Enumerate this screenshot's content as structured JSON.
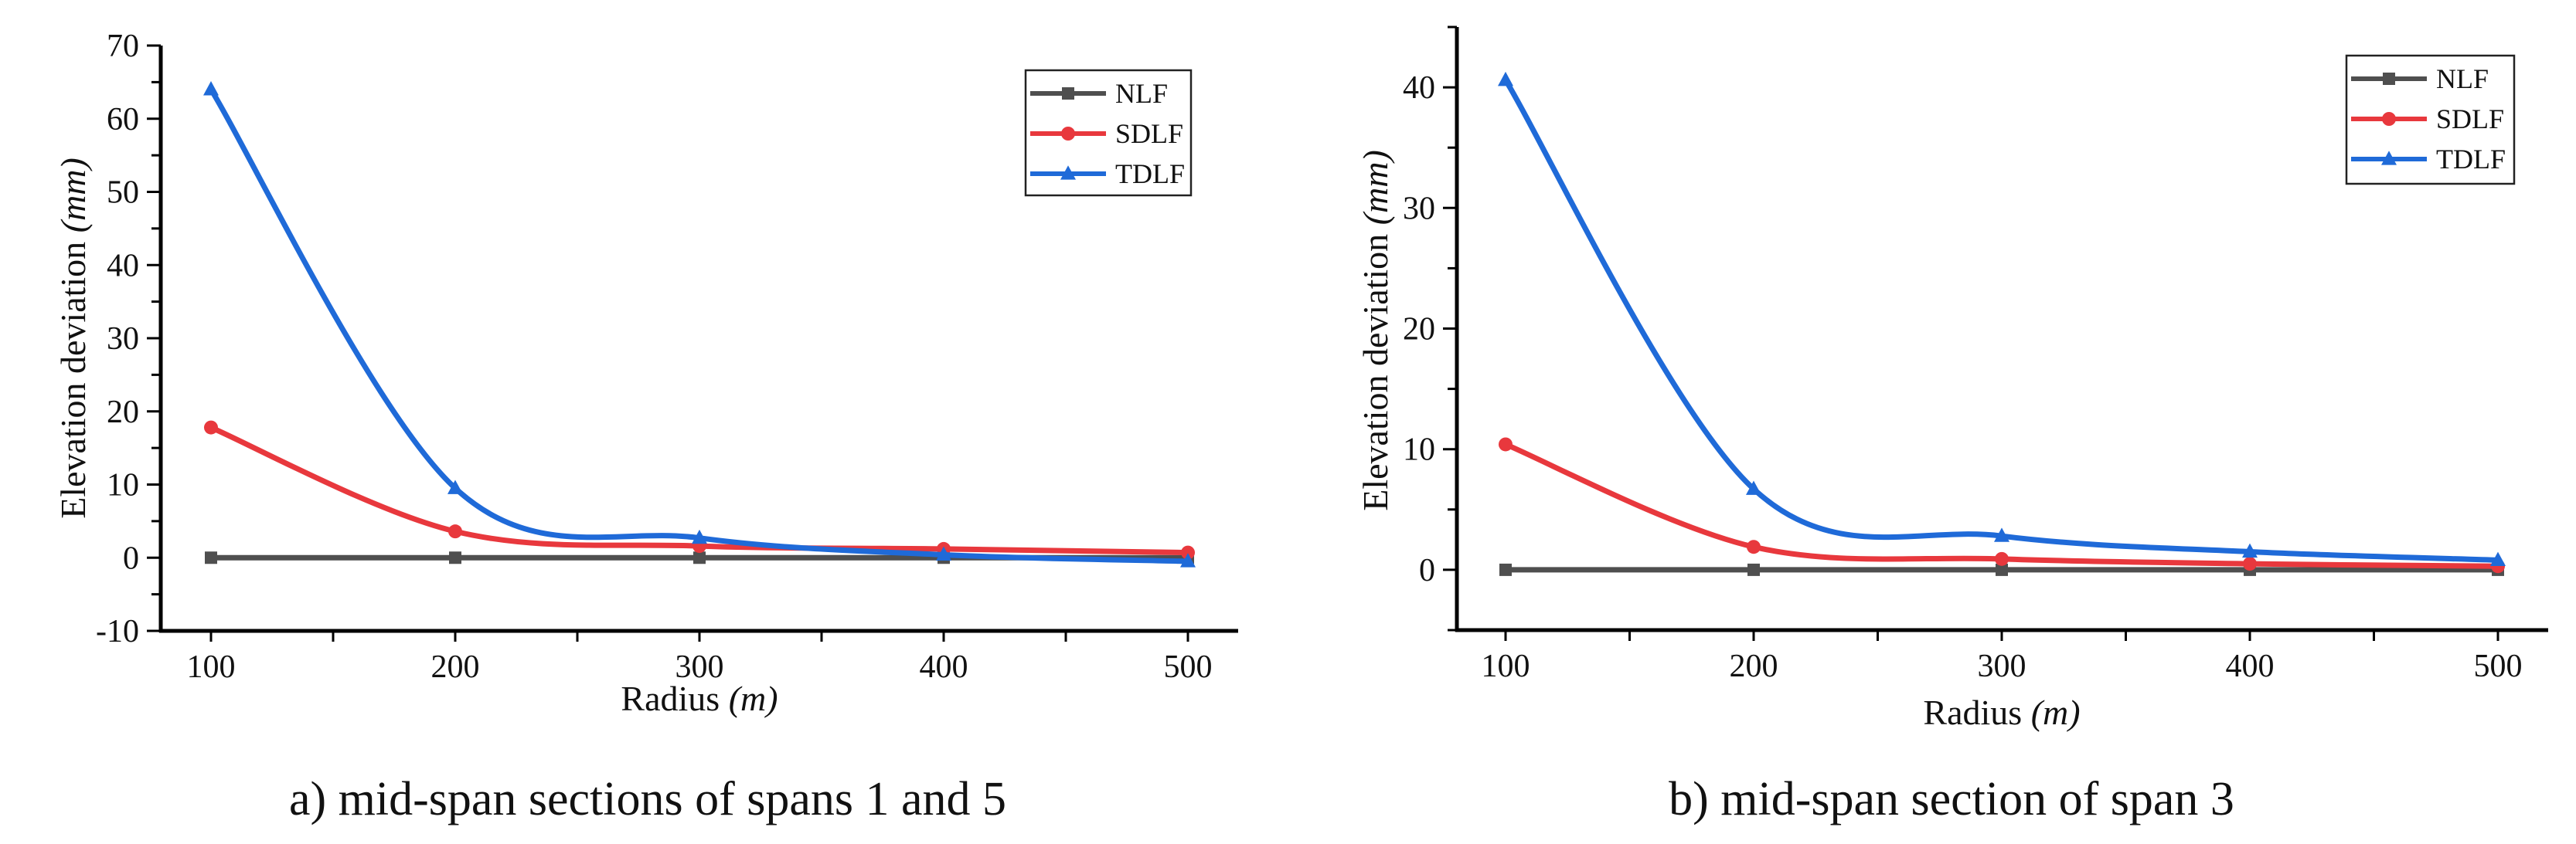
{
  "chart_data": [
    {
      "type": "line",
      "caption": "a) mid-span sections of spans 1 and 5",
      "xlabel": "Radius",
      "xlabel_unit": "(m)",
      "ylabel": "Elevation deviation",
      "ylabel_unit": "(mm)",
      "x": [
        100,
        200,
        300,
        400,
        500
      ],
      "xlim": [
        80,
        520
      ],
      "ylim": [
        -10,
        70
      ],
      "xticks": [
        100,
        200,
        300,
        400,
        500
      ],
      "xtick_labels": [
        "100",
        "200",
        "300",
        "400",
        "500"
      ],
      "yticks": [
        -10,
        0,
        10,
        20,
        30,
        40,
        50,
        60,
        70
      ],
      "ytick_labels": [
        "-10",
        "0",
        "10",
        "20",
        "30",
        "40",
        "50",
        "60",
        "70"
      ],
      "grid": false,
      "legend_position": "top-right",
      "series": [
        {
          "name": "NLF",
          "marker": "square",
          "color": "#4f4f4f",
          "values": [
            0,
            0,
            0,
            0,
            0
          ]
        },
        {
          "name": "SDLF",
          "marker": "circle",
          "color": "#e8383d",
          "values": [
            17.8,
            3.6,
            1.6,
            1.2,
            0.7
          ]
        },
        {
          "name": "TDLF",
          "marker": "triangle",
          "color": "#1f6ad8",
          "values": [
            64.0,
            9.5,
            2.7,
            0.4,
            -0.5
          ]
        }
      ]
    },
    {
      "type": "line",
      "caption": "b) mid-span section of span 3",
      "xlabel": "Radius",
      "xlabel_unit": "(m)",
      "ylabel": "Elevation deviation",
      "ylabel_unit": "(mm)",
      "x": [
        100,
        200,
        300,
        400,
        500
      ],
      "xlim": [
        80,
        520
      ],
      "ylim": [
        -5,
        45
      ],
      "xticks": [
        100,
        200,
        300,
        400,
        500
      ],
      "xtick_labels": [
        "100",
        "200",
        "300",
        "400",
        "500"
      ],
      "yticks": [
        0,
        10,
        20,
        30,
        40
      ],
      "ytick_labels": [
        "0",
        "10",
        "20",
        "30",
        "40"
      ],
      "grid": false,
      "legend_position": "top-right",
      "series": [
        {
          "name": "NLF",
          "marker": "square",
          "color": "#4f4f4f",
          "values": [
            0,
            0,
            0,
            0,
            0
          ]
        },
        {
          "name": "SDLF",
          "marker": "circle",
          "color": "#e8383d",
          "values": [
            10.4,
            1.9,
            0.9,
            0.5,
            0.3
          ]
        },
        {
          "name": "TDLF",
          "marker": "triangle",
          "color": "#1f6ad8",
          "values": [
            40.6,
            6.7,
            2.8,
            1.5,
            0.8
          ]
        }
      ]
    }
  ]
}
